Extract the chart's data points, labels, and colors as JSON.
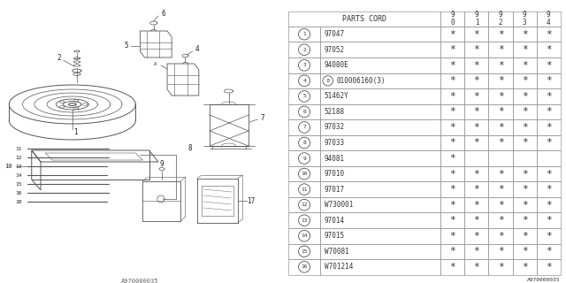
{
  "bg_color": "#ffffff",
  "rows": [
    {
      "num": "1",
      "part": "97047",
      "cols": [
        true,
        true,
        true,
        true,
        true
      ]
    },
    {
      "num": "2",
      "part": "97052",
      "cols": [
        true,
        true,
        true,
        true,
        true
      ]
    },
    {
      "num": "3",
      "part": "94080E",
      "cols": [
        true,
        true,
        true,
        true,
        true
      ]
    },
    {
      "num": "4",
      "part": "B010006160(3)",
      "cols": [
        true,
        true,
        true,
        true,
        true
      ],
      "bcirc": true
    },
    {
      "num": "5",
      "part": "51462Y",
      "cols": [
        true,
        true,
        true,
        true,
        true
      ]
    },
    {
      "num": "6",
      "part": "52188",
      "cols": [
        true,
        true,
        true,
        true,
        true
      ]
    },
    {
      "num": "7",
      "part": "97032",
      "cols": [
        true,
        true,
        true,
        true,
        true
      ]
    },
    {
      "num": "8",
      "part": "97033",
      "cols": [
        true,
        true,
        true,
        true,
        true
      ]
    },
    {
      "num": "9",
      "part": "94081",
      "cols": [
        true,
        false,
        false,
        false,
        false
      ]
    },
    {
      "num": "10",
      "part": "97010",
      "cols": [
        true,
        true,
        true,
        true,
        true
      ]
    },
    {
      "num": "11",
      "part": "97017",
      "cols": [
        true,
        true,
        true,
        true,
        true
      ]
    },
    {
      "num": "12",
      "part": "W730001",
      "cols": [
        true,
        true,
        true,
        true,
        true
      ]
    },
    {
      "num": "13",
      "part": "97014",
      "cols": [
        true,
        true,
        true,
        true,
        true
      ]
    },
    {
      "num": "14",
      "part": "97015",
      "cols": [
        true,
        true,
        true,
        true,
        true
      ]
    },
    {
      "num": "15",
      "part": "W70081",
      "cols": [
        true,
        true,
        true,
        true,
        true
      ]
    },
    {
      "num": "16",
      "part": "W701214",
      "cols": [
        true,
        true,
        true,
        true,
        true
      ]
    }
  ],
  "year_labels": [
    "9\n0",
    "9\n1",
    "9\n2",
    "9\n3",
    "9\n4"
  ],
  "footer": "A970000035",
  "line_color": "#999999",
  "draw_color": "#555555",
  "text_color": "#333333",
  "font_size": 6.0,
  "header_font_size": 6.0
}
